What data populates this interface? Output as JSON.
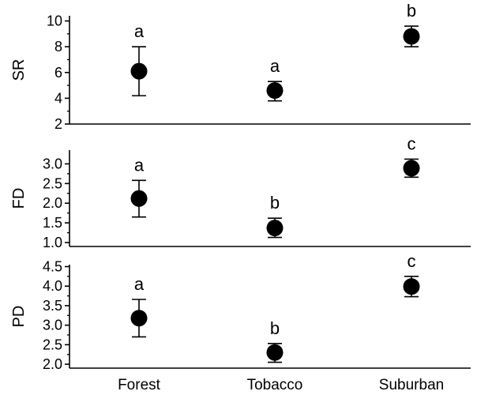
{
  "chart_data": [
    {
      "type": "scatter",
      "ylabel": "SR",
      "categories": [
        "Forest",
        "Tobacco",
        "Suburban"
      ],
      "values": [
        6.1,
        4.6,
        8.8
      ],
      "error_low": [
        4.2,
        3.8,
        8.0
      ],
      "error_high": [
        8.0,
        5.3,
        9.6
      ],
      "letters": [
        "a",
        "a",
        "b"
      ],
      "ylim": [
        2,
        10.4
      ],
      "yticks": [
        2,
        4,
        6,
        8,
        10
      ],
      "ytick_labels": [
        "2",
        "4",
        "6",
        "8",
        "10"
      ]
    },
    {
      "type": "scatter",
      "ylabel": "FD",
      "categories": [
        "Forest",
        "Tobacco",
        "Suburban"
      ],
      "values": [
        2.12,
        1.37,
        2.89
      ],
      "error_low": [
        1.65,
        1.13,
        2.66
      ],
      "error_high": [
        2.58,
        1.62,
        3.12
      ],
      "letters": [
        "a",
        "b",
        "c"
      ],
      "ylim": [
        0.9,
        3.35
      ],
      "yticks": [
        1.0,
        1.5,
        2.0,
        2.5,
        3.0
      ],
      "ytick_labels": [
        "1.0",
        "1.5",
        "2.0",
        "2.5",
        "3.0"
      ]
    },
    {
      "type": "scatter",
      "ylabel": "PD",
      "categories": [
        "Forest",
        "Tobacco",
        "Suburban"
      ],
      "values": [
        3.18,
        2.3,
        3.99
      ],
      "error_low": [
        2.7,
        2.05,
        3.73
      ],
      "error_high": [
        3.66,
        2.53,
        4.25
      ],
      "letters": [
        "a",
        "b",
        "c"
      ],
      "ylim": [
        1.9,
        4.55
      ],
      "yticks": [
        2.0,
        2.5,
        3.0,
        3.5,
        4.0,
        4.5
      ],
      "ytick_labels": [
        "2.0",
        "2.5",
        "3.0",
        "3.5",
        "4.0",
        "4.5"
      ]
    }
  ],
  "x_categories": [
    "Forest",
    "Tobacco",
    "Suburban"
  ]
}
